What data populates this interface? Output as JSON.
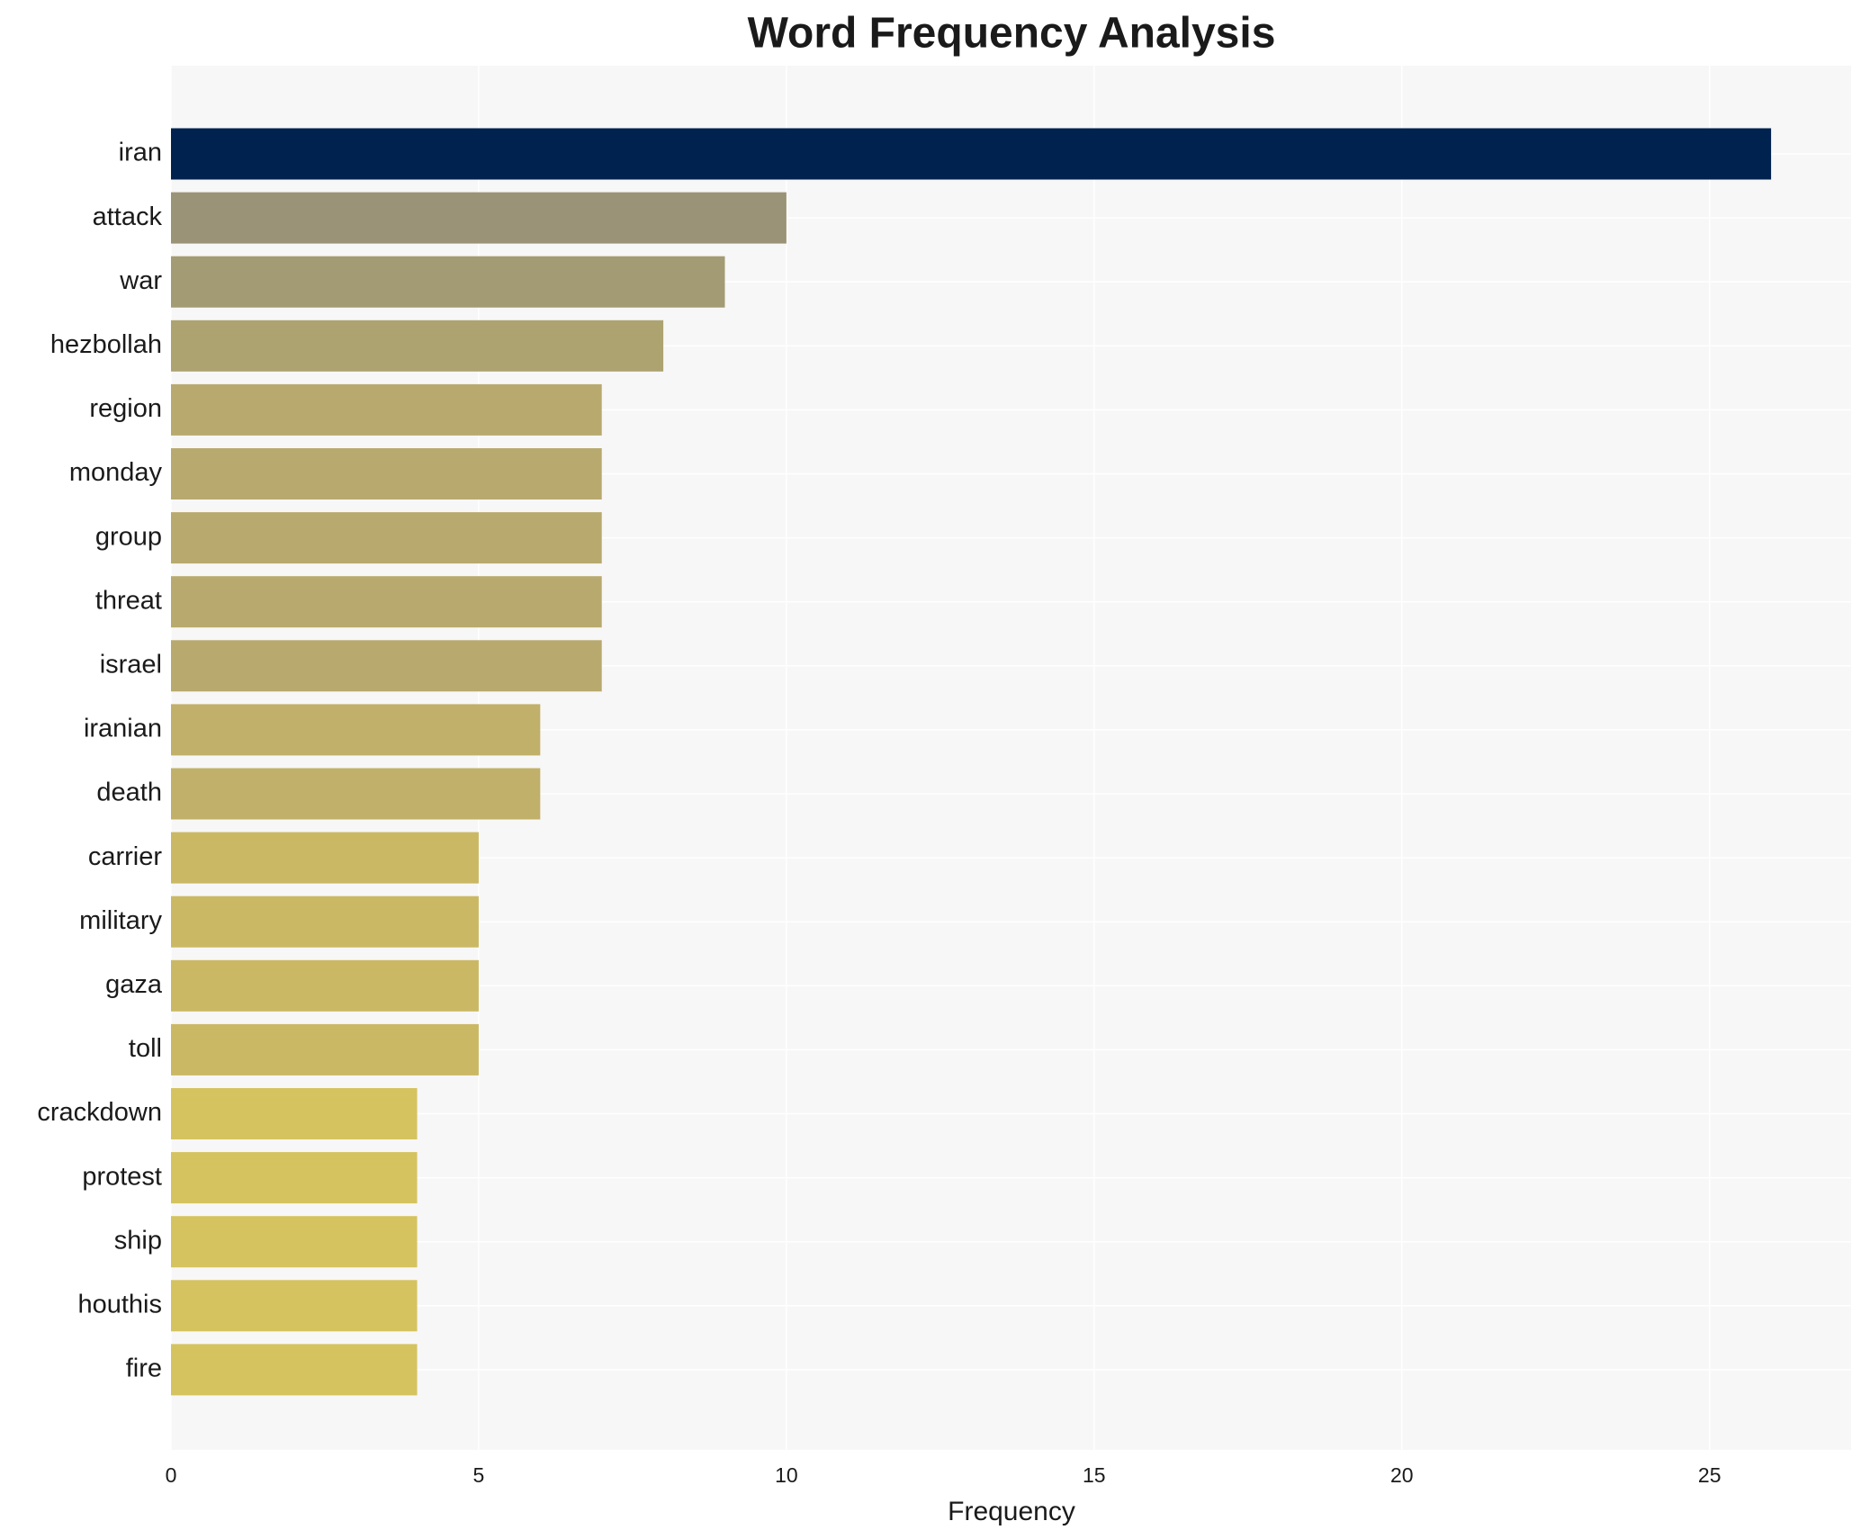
{
  "chart_data": {
    "type": "barh",
    "title": "Word Frequency Analysis",
    "xlabel": "Frequency",
    "categories": [
      "iran",
      "attack",
      "war",
      "hezbollah",
      "region",
      "monday",
      "group",
      "threat",
      "israel",
      "iranian",
      "death",
      "carrier",
      "military",
      "gaza",
      "toll",
      "crackdown",
      "protest",
      "ship",
      "houthis",
      "fire"
    ],
    "values": [
      26,
      10,
      9,
      8,
      7,
      7,
      7,
      7,
      7,
      6,
      6,
      5,
      5,
      5,
      5,
      4,
      4,
      4,
      4,
      4
    ],
    "colors": [
      "#00224e",
      "#9a9377",
      "#a39b73",
      "#ada371",
      "#b8aa6e",
      "#b8aa6e",
      "#b8aa6e",
      "#b8aa6e",
      "#b8aa6e",
      "#c1b069",
      "#c1b069",
      "#cbb864",
      "#cbb864",
      "#cbb864",
      "#cbb864",
      "#d5c360",
      "#d5c360",
      "#d5c360",
      "#d5c360",
      "#d5c360"
    ],
    "xlim": [
      0,
      27.3
    ],
    "xticks": [
      0,
      5,
      10,
      15,
      20,
      25
    ],
    "grid": true
  }
}
